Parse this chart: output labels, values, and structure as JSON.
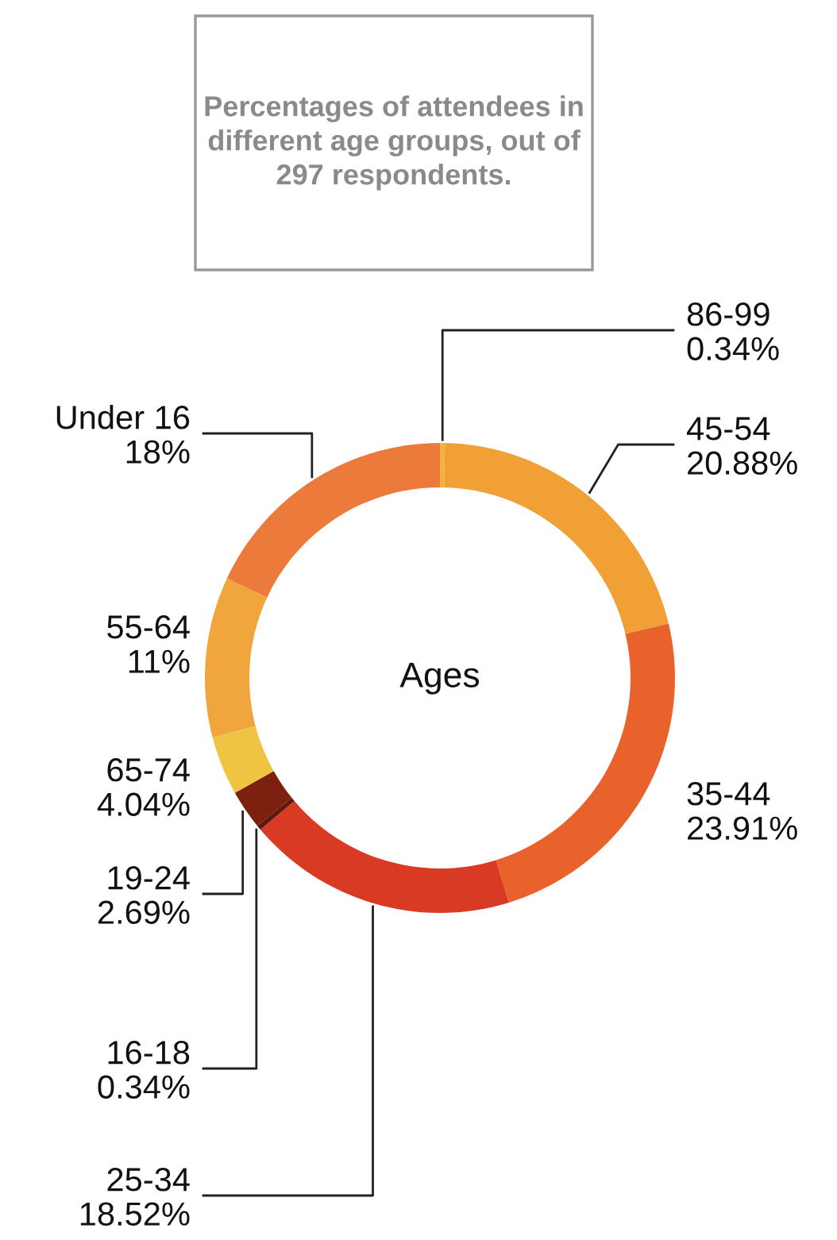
{
  "chart_data": {
    "type": "donut",
    "title": "Percentages of attendees in different age groups, out of 297 respondents.",
    "annotations": [
      "Ages"
    ],
    "categories": [
      "86-99",
      "45-54",
      "35-44",
      "25-34",
      "16-18",
      "19-24",
      "65-74",
      "55-64",
      "Under 16"
    ],
    "values": [
      0.34,
      20.88,
      23.91,
      18.52,
      0.34,
      2.69,
      4.04,
      11,
      18
    ],
    "value_labels": [
      "0.34%",
      "20.88%",
      "23.91%",
      "18.52%",
      "0.34%",
      "2.69%",
      "4.04%",
      "11%",
      "18%"
    ],
    "colors": [
      "#f2b33c",
      "#f0a035",
      "#e9612b",
      "#d93a24",
      "#5e1a0e",
      "#7d2010",
      "#f0c443",
      "#f0a63d",
      "#ec7a3a"
    ],
    "legend": false
  }
}
